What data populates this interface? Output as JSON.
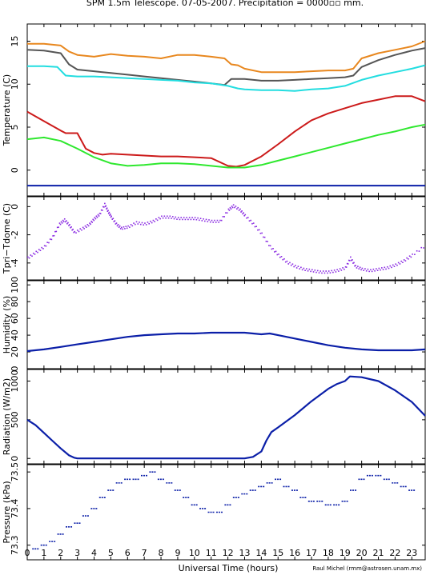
{
  "title": "SPM 1.5m Telescope. 07-05-2007. Precipitation = 0000▫▫ mm.",
  "xlabel": "Universal Time (hours)",
  "credit": "Raul Michel (rmm@astrosen.unam.mx)",
  "chart_data": [
    {
      "type": "line",
      "ylabel": "Temperature (C)",
      "xlim": [
        0,
        23.8
      ],
      "ylim": [
        -3,
        17
      ],
      "yticks": [
        0,
        5,
        10,
        15
      ],
      "series": [
        {
          "color": "#e8871e",
          "x": [
            0,
            1,
            2,
            2.5,
            3,
            4,
            5,
            6,
            7,
            8,
            9,
            10,
            11,
            11.8,
            12.2,
            12.6,
            13,
            14,
            15,
            16,
            17,
            18,
            19,
            19.5,
            20,
            21,
            22,
            23,
            23.8
          ],
          "values": [
            14.7,
            14.7,
            14.5,
            13.8,
            13.4,
            13.2,
            13.5,
            13.3,
            13.2,
            13.0,
            13.4,
            13.4,
            13.2,
            13.0,
            12.3,
            12.2,
            11.8,
            11.4,
            11.4,
            11.4,
            11.5,
            11.6,
            11.6,
            11.8,
            13.0,
            13.6,
            14.0,
            14.4,
            15.0
          ]
        },
        {
          "color": "#555555",
          "x": [
            0,
            1,
            2,
            2.5,
            3,
            4,
            5,
            6,
            7,
            8,
            9,
            10,
            11,
            11.8,
            12.2,
            12.6,
            13,
            14,
            15,
            16,
            17,
            18,
            19,
            19.5,
            20,
            21,
            22,
            23,
            23.8
          ],
          "values": [
            14.0,
            13.9,
            13.6,
            12.3,
            11.7,
            11.5,
            11.3,
            11.1,
            10.9,
            10.7,
            10.5,
            10.3,
            10.1,
            9.9,
            10.6,
            10.6,
            10.6,
            10.4,
            10.4,
            10.5,
            10.6,
            10.7,
            10.8,
            11.0,
            12.0,
            12.8,
            13.4,
            13.9,
            14.2
          ]
        },
        {
          "color": "#22dde0",
          "x": [
            0,
            1,
            1.8,
            2.3,
            3,
            4,
            5,
            6,
            7,
            8,
            9,
            10,
            11,
            12,
            12.6,
            13,
            14,
            15,
            16,
            17,
            18,
            19,
            20,
            21,
            22,
            23,
            23.8
          ],
          "values": [
            12.1,
            12.1,
            12.0,
            11.0,
            10.9,
            10.9,
            10.8,
            10.7,
            10.6,
            10.5,
            10.4,
            10.2,
            10.1,
            9.8,
            9.5,
            9.4,
            9.3,
            9.3,
            9.2,
            9.4,
            9.5,
            9.8,
            10.5,
            11.0,
            11.4,
            11.8,
            12.2
          ]
        },
        {
          "color": "#cc1a1a",
          "x": [
            0,
            1,
            2,
            2.3,
            3,
            3.5,
            4,
            4.5,
            5,
            6,
            7,
            8,
            9,
            10,
            11,
            12,
            12.5,
            13,
            14,
            15,
            16,
            17,
            18,
            19,
            20,
            21,
            22,
            23,
            23.8
          ],
          "values": [
            6.8,
            5.7,
            4.6,
            4.3,
            4.3,
            2.5,
            2.0,
            1.8,
            1.9,
            1.8,
            1.7,
            1.6,
            1.6,
            1.5,
            1.4,
            0.5,
            0.4,
            0.6,
            1.6,
            3.0,
            4.5,
            5.8,
            6.6,
            7.2,
            7.8,
            8.2,
            8.6,
            8.6,
            8.0
          ]
        },
        {
          "color": "#2ee82e",
          "x": [
            0,
            1,
            2,
            3,
            4,
            5,
            6,
            7,
            8,
            9,
            10,
            11,
            12,
            13,
            14,
            15,
            16,
            17,
            18,
            19,
            20,
            21,
            22,
            23,
            23.8
          ],
          "values": [
            3.6,
            3.8,
            3.4,
            2.5,
            1.5,
            0.8,
            0.5,
            0.6,
            0.8,
            0.8,
            0.7,
            0.5,
            0.3,
            0.3,
            0.6,
            1.1,
            1.6,
            2.1,
            2.6,
            3.1,
            3.6,
            4.1,
            4.5,
            5.0,
            5.3
          ]
        },
        {
          "color": "#0b1fa8",
          "x": [
            0,
            23.8
          ],
          "values": [
            -1.8,
            -1.8
          ]
        }
      ]
    },
    {
      "type": "scatter",
      "ylabel": "Tpri−Tdome (C)",
      "xlim": [
        0,
        23.8
      ],
      "ylim": [
        -5.2,
        0.7
      ],
      "yticks": [
        -4,
        -2,
        0
      ],
      "series": [
        {
          "color": "#8a2be2",
          "x": [
            0,
            0.5,
            1,
            1.5,
            1.9,
            2.2,
            2.5,
            2.8,
            3.3,
            3.7,
            4.0,
            4.3,
            4.6,
            4.8,
            5.0,
            5.3,
            5.6,
            6.0,
            6.5,
            7.0,
            7.5,
            8.0,
            8.5,
            9.0,
            9.5,
            10.0,
            10.5,
            11.0,
            11.5,
            12.0,
            12.3,
            12.7,
            13,
            13.5,
            14,
            14.5,
            15,
            15.5,
            16,
            16.5,
            17,
            17.5,
            18,
            18.5,
            19,
            19.3,
            19.6,
            20,
            20.5,
            21,
            21.5,
            22,
            22.5,
            23,
            23.8
          ],
          "values": [
            -3.6,
            -3.2,
            -2.8,
            -2.1,
            -1.2,
            -0.9,
            -1.3,
            -1.8,
            -1.5,
            -1.2,
            -0.8,
            -0.5,
            0.2,
            -0.3,
            -0.7,
            -1.2,
            -1.5,
            -1.4,
            -1.1,
            -1.2,
            -1.0,
            -0.7,
            -0.7,
            -0.8,
            -0.8,
            -0.8,
            -0.9,
            -1.0,
            -1.0,
            -0.2,
            0.1,
            -0.2,
            -0.6,
            -1.2,
            -1.9,
            -2.8,
            -3.4,
            -3.9,
            -4.2,
            -4.4,
            -4.5,
            -4.6,
            -4.6,
            -4.5,
            -4.3,
            -3.6,
            -4.2,
            -4.4,
            -4.5,
            -4.4,
            -4.3,
            -4.1,
            -3.8,
            -3.4,
            -2.7
          ]
        }
      ]
    },
    {
      "type": "line",
      "ylabel": "Humidity (%)",
      "xlim": [
        0,
        23.8
      ],
      "ylim": [
        0,
        105
      ],
      "yticks": [
        0,
        20,
        40,
        60,
        80,
        100
      ],
      "series": [
        {
          "color": "#0b1fa8",
          "x": [
            0,
            1,
            2,
            3,
            4,
            5,
            6,
            7,
            8,
            9,
            10,
            11,
            12,
            13,
            14,
            14.5,
            15,
            16,
            17,
            18,
            19,
            20,
            21,
            22,
            23,
            23.8
          ],
          "values": [
            21,
            23,
            26,
            29,
            32,
            35,
            38,
            40,
            41,
            42,
            42,
            43,
            43,
            43,
            41,
            42,
            40,
            36,
            32,
            28,
            25,
            23,
            22,
            22,
            22,
            23
          ]
        }
      ]
    },
    {
      "type": "line",
      "ylabel": "Radiation (W/m2)",
      "xlim": [
        0,
        23.8
      ],
      "ylim": [
        -70,
        1150
      ],
      "yticks": [
        0,
        500,
        1000
      ],
      "series": [
        {
          "color": "#0b1fa8",
          "x": [
            0,
            0.5,
            1,
            1.5,
            2,
            2.5,
            2.8,
            3,
            4,
            5,
            6,
            7,
            8,
            9,
            10,
            11,
            12,
            13,
            13.5,
            14,
            14.3,
            14.6,
            15,
            16,
            17,
            18,
            18.5,
            19,
            19.3,
            20,
            21,
            22,
            23,
            23.8
          ],
          "values": [
            500,
            430,
            330,
            230,
            130,
            40,
            10,
            0,
            0,
            0,
            0,
            0,
            0,
            0,
            0,
            0,
            0,
            0,
            20,
            90,
            230,
            340,
            400,
            560,
            740,
            900,
            960,
            1000,
            1060,
            1050,
            1000,
            880,
            730,
            550
          ]
        }
      ]
    },
    {
      "type": "scatter",
      "ylabel": "Pressure (kPa)",
      "xlim": [
        0,
        23.8
      ],
      "ylim": [
        73.26,
        73.52
      ],
      "yticks": [
        73.3,
        73.4,
        73.5
      ],
      "series": [
        {
          "color": "#0b1fa8",
          "x": [
            0.3,
            0.8,
            1.3,
            1.8,
            2.3,
            2.8,
            3.3,
            3.8,
            4.3,
            4.8,
            5.3,
            5.8,
            6.3,
            6.8,
            7.3,
            7.8,
            8.3,
            8.8,
            9.3,
            9.8,
            10.3,
            10.8,
            11.3,
            11.8,
            12.3,
            12.8,
            13.3,
            13.8,
            14.3,
            14.8,
            15.3,
            15.8,
            16.3,
            16.8,
            17.3,
            17.8,
            18.3,
            18.8,
            19.3,
            19.8,
            20.3,
            20.8,
            21.3,
            21.8,
            22.3,
            22.8,
            23.3
          ],
          "values": [
            73.29,
            73.3,
            73.31,
            73.33,
            73.35,
            73.36,
            73.38,
            73.4,
            73.43,
            73.45,
            73.47,
            73.48,
            73.48,
            73.49,
            73.5,
            73.48,
            73.47,
            73.45,
            73.43,
            73.41,
            73.4,
            73.39,
            73.39,
            73.41,
            73.43,
            73.44,
            73.45,
            73.46,
            73.47,
            73.48,
            73.46,
            73.45,
            73.43,
            73.42,
            73.42,
            73.41,
            73.41,
            73.42,
            73.45,
            73.48,
            73.49,
            73.49,
            73.48,
            73.47,
            73.46,
            73.45,
            73.44
          ]
        }
      ]
    }
  ],
  "xticks": [
    0,
    1,
    2,
    3,
    4,
    5,
    6,
    7,
    8,
    9,
    10,
    11,
    12,
    13,
    14,
    15,
    16,
    17,
    18,
    19,
    20,
    21,
    22,
    23
  ],
  "xtick_labels": [
    "0",
    "1",
    "2",
    "3",
    "4",
    "5",
    "6",
    "7",
    "8",
    "9",
    "10",
    "11",
    "12",
    "13",
    "14",
    "15",
    "16",
    "17",
    "18",
    "19",
    "20",
    "21",
    "22",
    "23"
  ]
}
